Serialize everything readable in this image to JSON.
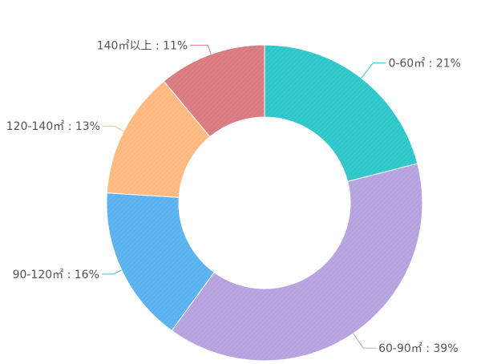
{
  "chart_data": {
    "type": "pie",
    "variant": "donut",
    "start_angle_deg": 90,
    "direction": "clockwise",
    "title": "",
    "legend": "none",
    "slices": [
      {
        "label": "0-60㎡",
        "value": 21,
        "display": "0-60㎡ : 21%",
        "color": "#2ec7c9"
      },
      {
        "label": "60-90㎡",
        "value": 39,
        "display": "60-90㎡ : 39%",
        "color": "#b6a2de"
      },
      {
        "label": "90-120㎡",
        "value": 16,
        "display": "90-120㎡ : 16%",
        "color": "#5ab1ef"
      },
      {
        "label": "120-140㎡",
        "value": 13,
        "display": "120-140㎡ : 13%",
        "color": "#ffb980"
      },
      {
        "label": "140㎡以上",
        "value": 11,
        "display": "140㎡以上 : 11%",
        "color": "#d87a80"
      }
    ]
  }
}
